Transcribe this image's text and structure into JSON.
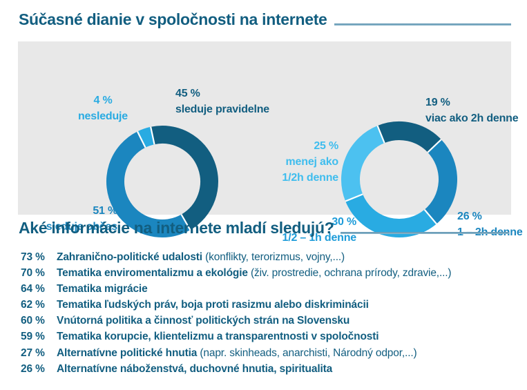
{
  "header": {
    "title": "Súčasné dianie v spoločnosti na internete"
  },
  "section2": {
    "title": "Aké informácie na internete mladí sledujú?"
  },
  "colors": {
    "dark_blue": "#125E80",
    "medium_blue": "#1B86BF",
    "bright_blue": "#29ABE2",
    "light_blue": "#4CC1F0",
    "panel_bg": "#E8E8E8",
    "rule_blue": "#6E9EB8"
  },
  "chart_data": [
    {
      "type": "pie",
      "subtype": "donut",
      "name": "sledovanie-diania-frekvencia",
      "start_angle": -26.4,
      "legend_position": "around",
      "segments": [
        {
          "pct": "4 %",
          "label": "nesleduje",
          "value": 4,
          "color": "#29ABE2",
          "label_color": "#29ABE2"
        },
        {
          "pct": "45 %",
          "label": "sleduje pravidelne",
          "value": 45,
          "color": "#125E80",
          "label_color": "#125E80"
        },
        {
          "pct": "51 %",
          "label": "sleduje občas",
          "value": 51,
          "color": "#1B86BF",
          "label_color": "#1B86BF"
        }
      ]
    },
    {
      "type": "pie",
      "subtype": "donut",
      "name": "cas-straveny-denne",
      "start_angle": -22,
      "legend_position": "around",
      "segments": [
        {
          "pct": "19 %",
          "label": "viac ako 2h denne",
          "value": 19,
          "color": "#125E80",
          "label_color": "#125E80"
        },
        {
          "pct": "26 %",
          "label": "1 – 2h denne",
          "value": 26,
          "color": "#1B86BF",
          "label_color": "#1B86BF"
        },
        {
          "pct": "30 %",
          "label": "1/2 – 1h denne",
          "value": 30,
          "color": "#29ABE2",
          "label_color": "#1E9CD9"
        },
        {
          "pct": "25 %",
          "label": "menej ako 1/2h denne",
          "value": 25,
          "color": "#4CC1F0",
          "label_color": "#3FBDEE",
          "label_lines": [
            "menej ako",
            "1/2h denne"
          ]
        }
      ]
    }
  ],
  "info_list": {
    "items": [
      {
        "pct": "73 %",
        "bold": "Zahranično-politické udalosti",
        "normal": " (konflikty, terorizmus, vojny,...)"
      },
      {
        "pct": "70 %",
        "bold": "Tematika enviromentalizmu a ekológie",
        "normal": " (živ. prostredie, ochrana prírody, zdravie,...)"
      },
      {
        "pct": "64 %",
        "bold": "Tematika migrácie",
        "normal": ""
      },
      {
        "pct": "62 %",
        "bold": "Tematika ľudských práv, boja proti rasizmu alebo diskriminácii",
        "normal": ""
      },
      {
        "pct": "60 %",
        "bold": "Vnútorná politika a činnosť politických strán na Slovensku",
        "normal": ""
      },
      {
        "pct": "59 %",
        "bold": "Tematika korupcie, klientelizmu a transparentnosti v spoločnosti",
        "normal": ""
      },
      {
        "pct": "27 %",
        "bold": "Alternatívne politické hnutia",
        "normal": " (napr. skinheads, anarchisti, Národný odpor,...)"
      },
      {
        "pct": "26 %",
        "bold": "Alternatívne náboženstvá, duchovné hnutia, spiritualita",
        "normal": ""
      }
    ]
  }
}
